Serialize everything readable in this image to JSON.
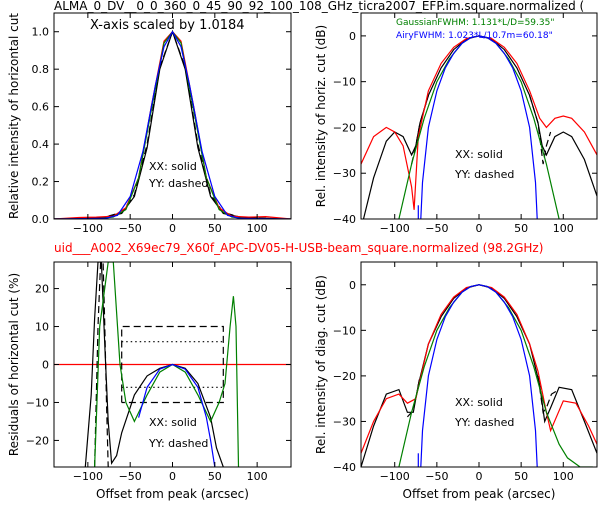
{
  "figure": {
    "title_top": "ALMA_0_DV__0_0_360_0_45_90_92_100_108_GHz_ticra2007_EFP.im.square.normalized (",
    "title_mid": "uid___A002_X69ec79_X60f_APC-DV05-H-USB-beam_square.normalized (98.2GHz)",
    "title_mid_color": "#ff0000",
    "scale_note": "X-axis scaled by 1.0184",
    "legend_solid": "XX: solid",
    "legend_dashed": "YY: dashed",
    "gauss_note": "GaussianFWHM: 1.131*L/D=59.35\"",
    "airy_note": "AiryFWHM: 1.023*L/10.7m=60.18\"",
    "colors": {
      "measured": "#000000",
      "model": "#ff0000",
      "gaussian": "#008000",
      "airy": "#0000ff"
    }
  },
  "chart_data": [
    {
      "type": "line",
      "panel": "top-left",
      "xlabel": "",
      "ylabel": "Relative intensity of horizontal cut",
      "xlim": [
        -140,
        140
      ],
      "ylim": [
        0.0,
        1.1
      ],
      "xticks": [
        -100,
        -50,
        0,
        50,
        100
      ],
      "yticks": [
        0.0,
        0.2,
        0.4,
        0.6,
        0.8,
        1.0
      ],
      "xticklabels": [
        "−100",
        "−50",
        "0",
        "50",
        "100"
      ],
      "yticklabels": [
        "0.0",
        "0.2",
        "0.4",
        "0.6",
        "0.8",
        "1.0"
      ],
      "series": [
        {
          "color": "#000000",
          "style": "solid",
          "x": [
            -140,
            -100,
            -80,
            -60,
            -45,
            -30,
            -15,
            0,
            15,
            30,
            45,
            60,
            80,
            100,
            140
          ],
          "y": [
            0.0,
            0.005,
            0.01,
            0.03,
            0.12,
            0.38,
            0.8,
            1.0,
            0.8,
            0.38,
            0.12,
            0.03,
            0.01,
            0.005,
            0.0
          ]
        },
        {
          "color": "#000000",
          "style": "dashed",
          "x": [
            -140,
            -100,
            -80,
            -60,
            -45,
            -30,
            -15,
            0,
            15,
            30,
            45,
            60,
            80,
            100,
            140
          ],
          "y": [
            0.0,
            0.005,
            0.01,
            0.035,
            0.13,
            0.4,
            0.81,
            1.0,
            0.81,
            0.4,
            0.13,
            0.035,
            0.01,
            0.005,
            0.0
          ]
        },
        {
          "color": "#ff0000",
          "style": "solid",
          "x": [
            -140,
            -110,
            -90,
            -70,
            -55,
            -40,
            -25,
            -10,
            0,
            10,
            25,
            40,
            55,
            70,
            90,
            110,
            140
          ],
          "y": [
            0.0,
            0.008,
            0.01,
            0.015,
            0.06,
            0.22,
            0.6,
            0.95,
            1.0,
            0.95,
            0.6,
            0.22,
            0.06,
            0.015,
            0.01,
            0.013,
            0.0
          ]
        },
        {
          "color": "#008000",
          "style": "solid",
          "x": [
            -140,
            -90,
            -70,
            -55,
            -40,
            -25,
            -10,
            0,
            10,
            25,
            40,
            55,
            70,
            90,
            140
          ],
          "y": [
            0.0,
            0.0,
            0.01,
            0.05,
            0.22,
            0.58,
            0.94,
            1.0,
            0.94,
            0.58,
            0.22,
            0.05,
            0.01,
            0.0,
            0.0
          ]
        },
        {
          "color": "#0000ff",
          "style": "solid",
          "x": [
            -140,
            -80,
            -65,
            -50,
            -35,
            -20,
            -10,
            0,
            10,
            20,
            35,
            50,
            65,
            80,
            140
          ],
          "y": [
            0.0,
            0.003,
            0.02,
            0.12,
            0.36,
            0.72,
            0.92,
            1.0,
            0.92,
            0.72,
            0.36,
            0.12,
            0.02,
            0.003,
            0.0
          ]
        }
      ]
    },
    {
      "type": "line",
      "panel": "top-right",
      "xlabel": "",
      "ylabel": "Rel. intensity of horiz. cut (dB)",
      "xlim": [
        -140,
        140
      ],
      "ylim": [
        -40,
        5
      ],
      "xticks": [
        -100,
        -50,
        0,
        50,
        100
      ],
      "yticks": [
        -40,
        -30,
        -20,
        -10,
        0
      ],
      "xticklabels": [
        "−100",
        "−50",
        "0",
        "50",
        "100"
      ],
      "yticklabels": [
        "−40",
        "−30",
        "−20",
        "−10",
        "0"
      ],
      "series": [
        {
          "color": "#000000",
          "style": "solid",
          "x": [
            -137,
            -125,
            -110,
            -100,
            -90,
            -80,
            -75,
            -70,
            -60,
            -45,
            -30,
            -15,
            0,
            15,
            30,
            45,
            60,
            70,
            75,
            80,
            90,
            100,
            110,
            125,
            140
          ],
          "y": [
            -40,
            -31,
            -23,
            -21,
            -22,
            -26,
            -24,
            -19,
            -13,
            -7,
            -3,
            -0.7,
            0,
            -0.7,
            -3,
            -7,
            -13,
            -19,
            -24,
            -26,
            -22,
            -21,
            -22,
            -27,
            -35
          ]
        },
        {
          "color": "#000000",
          "style": "dashed",
          "x": [
            -80,
            -75,
            -70,
            -60
          ],
          "y": [
            -28,
            -24,
            -19,
            -13
          ]
        },
        {
          "color": "#000000",
          "style": "dashed",
          "x": [
            60,
            70,
            76,
            80,
            85
          ],
          "y": [
            -13,
            -19,
            -28,
            -24,
            -21
          ]
        },
        {
          "color": "#ff0000",
          "style": "solid",
          "x": [
            -140,
            -125,
            -110,
            -100,
            -90,
            -80,
            -77,
            -72,
            -60,
            -45,
            -30,
            -15,
            0,
            15,
            30,
            45,
            60,
            72,
            80,
            90,
            100,
            110,
            125,
            140
          ],
          "y": [
            -28,
            -22,
            -20,
            -21,
            -24,
            -33,
            -38,
            -22,
            -12,
            -6,
            -2.5,
            -0.6,
            0,
            -0.6,
            -2.5,
            -6,
            -12,
            -18,
            -20,
            -18,
            -17.5,
            -18,
            -21,
            -26
          ]
        },
        {
          "color": "#008000",
          "style": "solid",
          "x": [
            -95,
            -80,
            -65,
            -50,
            -35,
            -20,
            -10,
            0,
            10,
            20,
            35,
            50,
            65,
            80,
            95
          ],
          "y": [
            -40,
            -28,
            -18,
            -10,
            -5,
            -1.6,
            -0.4,
            0,
            -0.4,
            -1.6,
            -5,
            -10,
            -18,
            -28,
            -40
          ]
        },
        {
          "color": "#0000ff",
          "style": "solid",
          "x": [
            -69,
            -67,
            -60,
            -50,
            -40,
            -30,
            -20,
            -10,
            0,
            10,
            20,
            30,
            40,
            50,
            60,
            67,
            69
          ],
          "y": [
            -40,
            -32,
            -20,
            -12,
            -7,
            -3.8,
            -1.6,
            -0.4,
            0,
            -0.4,
            -1.6,
            -3.8,
            -7,
            -12,
            -20,
            -32,
            -40
          ]
        },
        {
          "color": "#0000ff",
          "style": "solid",
          "x": [
            -72,
            -72
          ],
          "y": [
            -37,
            -40
          ]
        }
      ]
    },
    {
      "type": "line",
      "panel": "bottom-left",
      "xlabel": "Offset from peak (arcsec)",
      "ylabel": "Residuals of horizontal cut (%)",
      "xlim": [
        -140,
        140
      ],
      "ylim": [
        -27,
        27
      ],
      "xticks": [
        -100,
        -50,
        0,
        50,
        100
      ],
      "yticks": [
        -20,
        -10,
        0,
        10,
        20
      ],
      "xticklabels": [
        "−100",
        "−50",
        "0",
        "50",
        "100"
      ],
      "yticklabels": [
        "−20",
        "−10",
        "0",
        "10",
        "20"
      ],
      "series": [
        {
          "color": "#ff0000",
          "style": "solid",
          "x": [
            -140,
            140
          ],
          "y": [
            0,
            0
          ]
        },
        {
          "color": "#000000",
          "style": "solid",
          "x": [
            -103,
            -96,
            -92,
            -88,
            -84,
            -80,
            -76,
            -72,
            -66,
            -60,
            -45,
            -30,
            -15,
            0,
            15,
            30,
            45,
            52,
            60
          ],
          "y": [
            -27,
            -8,
            12,
            27,
            27,
            5,
            -15,
            -26,
            -24,
            -18,
            -8,
            -3,
            -1,
            0,
            -1,
            -5,
            -14,
            -22,
            -27
          ]
        },
        {
          "color": "#000000",
          "style": "dashed",
          "x": [
            -92,
            -88,
            -85,
            -82,
            -80,
            -78,
            -76,
            -75
          ],
          "y": [
            -27,
            10,
            27,
            27,
            10,
            -10,
            -27,
            -27
          ]
        },
        {
          "color": "#000000",
          "style": "dashed",
          "x": [
            -60,
            -60,
            60,
            60,
            -60
          ],
          "y": [
            -10,
            10,
            10,
            -10,
            -10
          ]
        },
        {
          "color": "#000000",
          "style": "dotted",
          "x": [
            -60,
            60
          ],
          "y": [
            6,
            6
          ]
        },
        {
          "color": "#000000",
          "style": "dotted",
          "x": [
            -60,
            60
          ],
          "y": [
            -6,
            -6
          ]
        },
        {
          "color": "#008000",
          "style": "solid",
          "x": [
            -92,
            -86,
            -76,
            -70,
            -62,
            -55,
            -45,
            -30,
            -15,
            0,
            15,
            30,
            45,
            55,
            62,
            68,
            72,
            75,
            78
          ],
          "y": [
            -27,
            10,
            27,
            27,
            0,
            -10,
            -15,
            -8,
            -2,
            0,
            -2,
            -8,
            -15,
            -10,
            -5,
            10,
            18,
            10,
            -27
          ]
        },
        {
          "color": "#0000ff",
          "style": "solid",
          "x": [
            -40,
            -30,
            -15,
            0,
            15,
            30,
            40,
            45,
            50
          ],
          "y": [
            -14,
            -6,
            -1.2,
            0,
            -1.2,
            -6,
            -14,
            -20,
            -27
          ]
        }
      ]
    },
    {
      "type": "line",
      "panel": "bottom-right",
      "xlabel": "Offset from peak (arcsec)",
      "ylabel": "Rel. intensity of diag. cut (dB)",
      "xlim": [
        -140,
        140
      ],
      "ylim": [
        -40,
        5
      ],
      "xticks": [
        -100,
        -50,
        0,
        50,
        100
      ],
      "yticks": [
        -40,
        -30,
        -20,
        -10,
        0
      ],
      "xticklabels": [
        "−100",
        "−50",
        "0",
        "50",
        "100"
      ],
      "yticklabels": [
        "−40",
        "−30",
        "−20",
        "−10",
        "0"
      ],
      "series": [
        {
          "color": "#000000",
          "style": "solid",
          "x": [
            -140,
            -125,
            -110,
            -95,
            -85,
            -78,
            -72,
            -60,
            -45,
            -30,
            -15,
            0,
            15,
            30,
            45,
            60,
            72,
            78,
            85,
            95,
            110,
            125,
            140
          ],
          "y": [
            -40,
            -31,
            -24,
            -23,
            -28,
            -28,
            -22,
            -13,
            -7,
            -3,
            -0.7,
            0,
            -0.7,
            -3,
            -7,
            -13,
            -22,
            -30,
            -27,
            -22.5,
            -23,
            -30,
            -37
          ]
        },
        {
          "color": "#000000",
          "style": "dashed",
          "x": [
            -85,
            -80,
            -75,
            -70
          ],
          "y": [
            -29,
            -28,
            -25,
            -20
          ]
        },
        {
          "color": "#000000",
          "style": "dashed",
          "x": [
            70,
            76,
            80,
            86,
            95
          ],
          "y": [
            -20,
            -28,
            -27,
            -24,
            -23
          ]
        },
        {
          "color": "#ff0000",
          "style": "solid",
          "x": [
            -140,
            -125,
            -110,
            -95,
            -85,
            -75,
            -70,
            -60,
            -45,
            -30,
            -15,
            0,
            15,
            30,
            45,
            60,
            70,
            80,
            85,
            100,
            115,
            130,
            140
          ],
          "y": [
            -37,
            -30,
            -25,
            -24,
            -26,
            -25,
            -21,
            -13,
            -6.5,
            -2.7,
            -0.6,
            0,
            -0.6,
            -2.7,
            -6.5,
            -13,
            -19,
            -28,
            -32,
            -25.5,
            -26,
            -31,
            -35
          ]
        },
        {
          "color": "#008000",
          "style": "solid",
          "x": [
            -95,
            -80,
            -65,
            -50,
            -35,
            -20,
            -10,
            0,
            10,
            20,
            35,
            50,
            65,
            80,
            95,
            105,
            120,
            135
          ],
          "y": [
            -40,
            -28,
            -18,
            -10,
            -5,
            -1.6,
            -0.4,
            0,
            -0.4,
            -1.6,
            -5,
            -10,
            -18,
            -28,
            -35,
            -38,
            -40,
            -40
          ]
        },
        {
          "color": "#0000ff",
          "style": "solid",
          "x": [
            -69,
            -67,
            -60,
            -50,
            -40,
            -30,
            -20,
            -10,
            0,
            10,
            20,
            30,
            40,
            50,
            60,
            67,
            69
          ],
          "y": [
            -40,
            -32,
            -20,
            -12,
            -7,
            -3.8,
            -1.6,
            -0.4,
            0,
            -0.4,
            -1.6,
            -3.8,
            -7,
            -12,
            -20,
            -32,
            -40
          ]
        },
        {
          "color": "#0000ff",
          "style": "solid",
          "x": [
            -72,
            -72
          ],
          "y": [
            -37,
            -40
          ]
        }
      ]
    }
  ]
}
